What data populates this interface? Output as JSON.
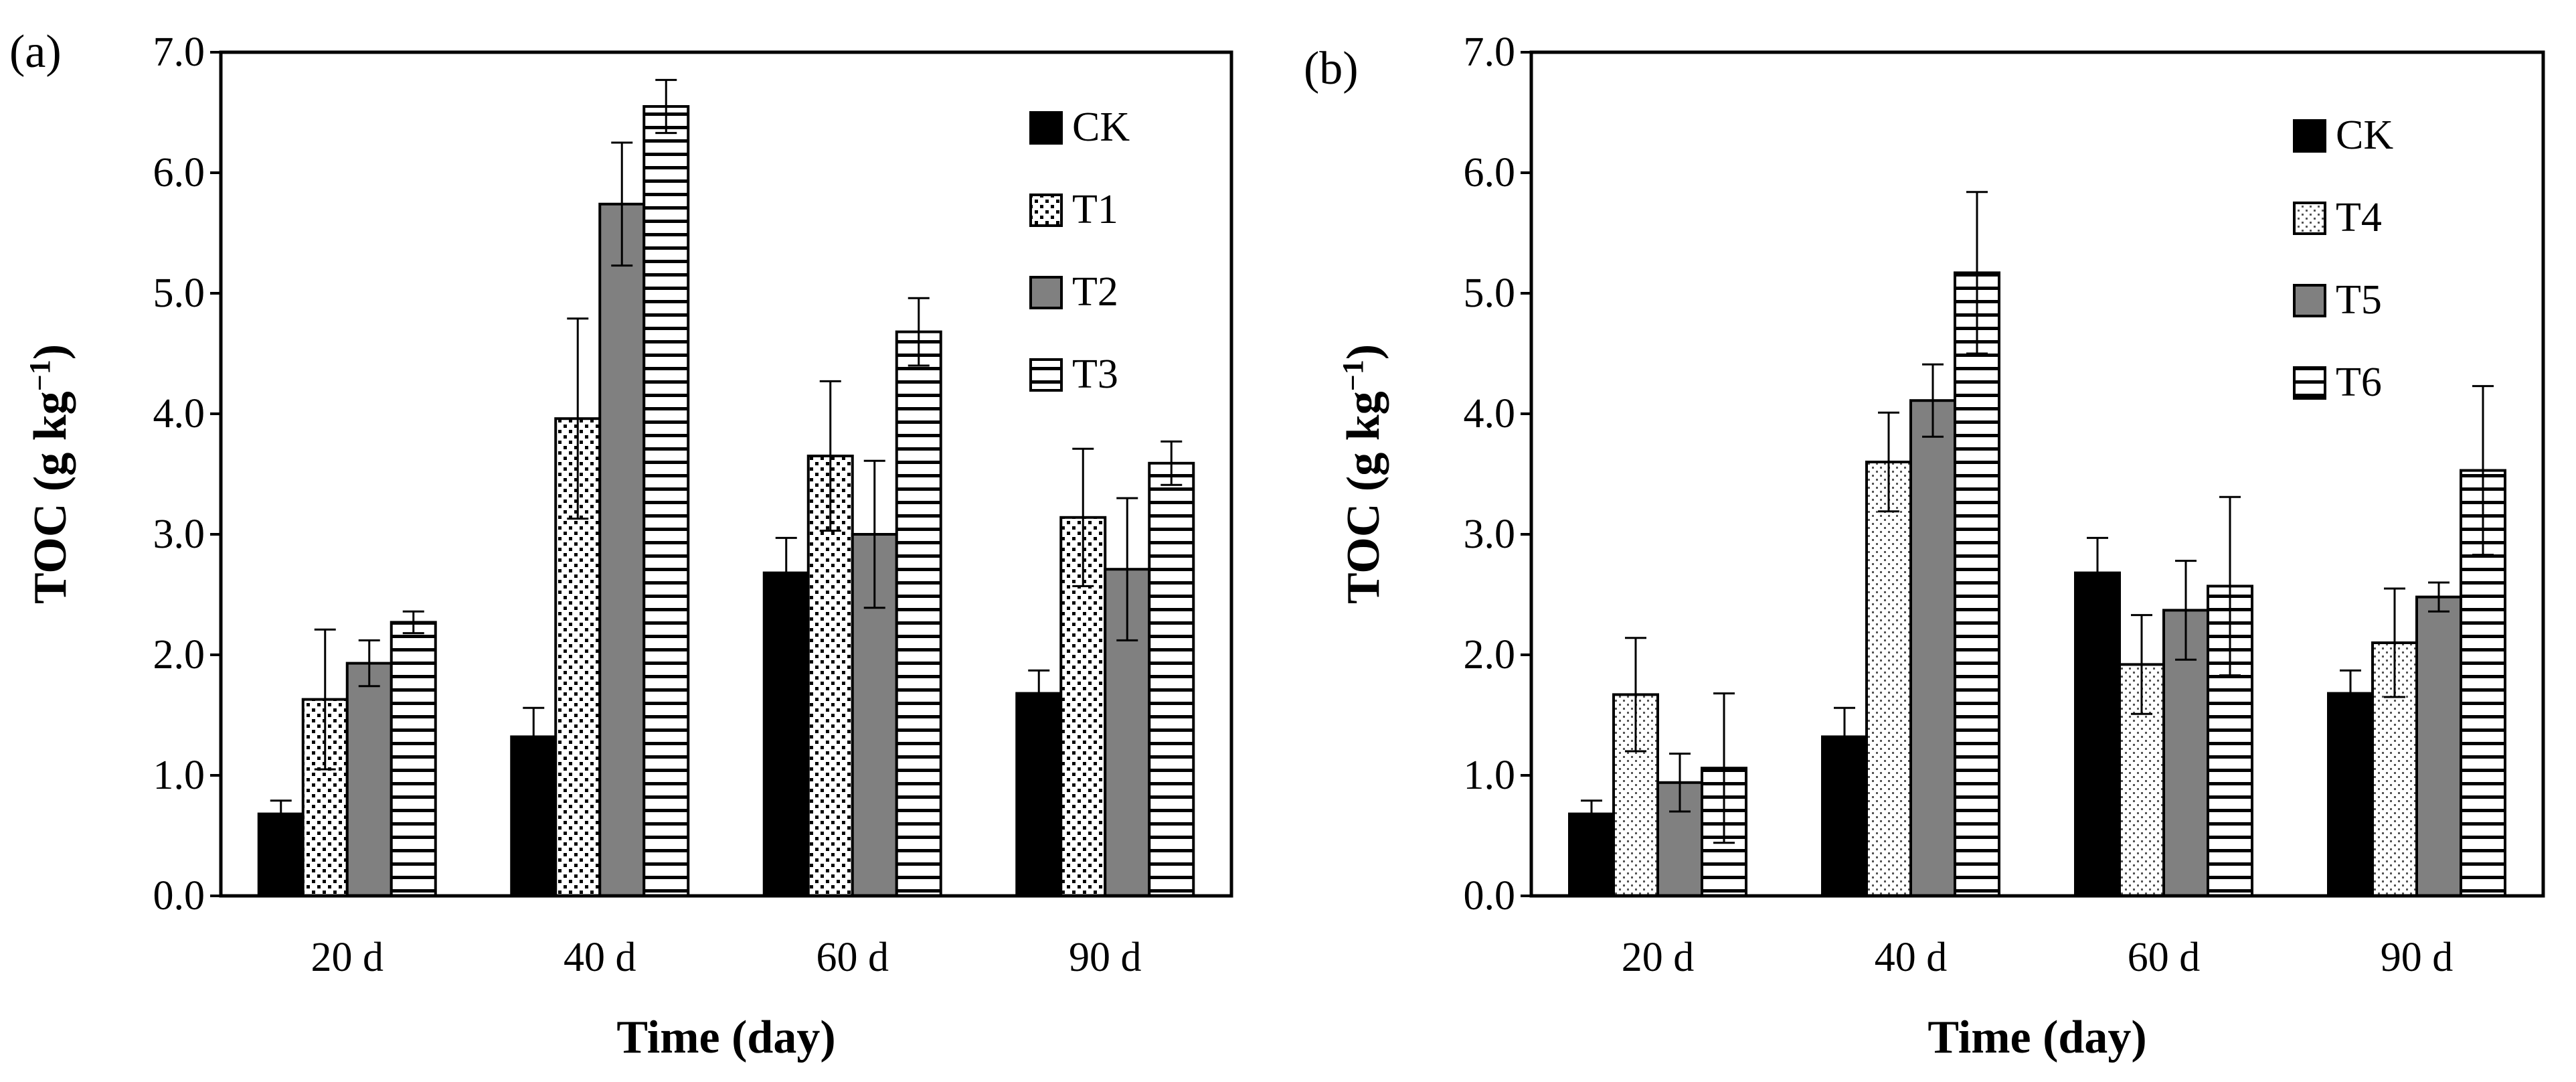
{
  "chart_data": [
    {
      "type": "bar",
      "panel_label": "(a)",
      "xlabel": "Time (day)",
      "ylabel_main": "TOC (g kg",
      "ylabel_sup": "−1",
      "ylabel_close": ")",
      "ylim": [
        0,
        7
      ],
      "yticks": [
        "0.0",
        "1.0",
        "2.0",
        "3.0",
        "4.0",
        "5.0",
        "6.0",
        "7.0"
      ],
      "categories": [
        "20 d",
        "40 d",
        "60 d",
        "90 d"
      ],
      "legend_position": "top-right",
      "series": [
        {
          "name": "CK",
          "fill": "solid-black",
          "values": [
            0.68,
            1.32,
            2.68,
            1.68
          ],
          "errors": [
            0.11,
            0.24,
            0.29,
            0.19
          ]
        },
        {
          "name": "T1",
          "fill": "dots",
          "values": [
            1.63,
            3.96,
            3.65,
            3.14
          ],
          "errors": [
            0.58,
            0.83,
            0.62,
            0.57
          ]
        },
        {
          "name": "T2",
          "fill": "solid-gray",
          "values": [
            1.93,
            5.74,
            3.0,
            2.71
          ],
          "errors": [
            0.19,
            0.51,
            0.61,
            0.59
          ]
        },
        {
          "name": "T3",
          "fill": "horizontal-lines",
          "values": [
            2.27,
            6.55,
            4.68,
            3.59
          ],
          "errors": [
            0.09,
            0.22,
            0.28,
            0.18
          ]
        }
      ]
    },
    {
      "type": "bar",
      "panel_label": "(b)",
      "xlabel": "Time (day)",
      "ylabel_main": "TOC (g kg",
      "ylabel_sup": "−1",
      "ylabel_close": ")",
      "ylim": [
        0,
        7
      ],
      "yticks": [
        "0.0",
        "1.0",
        "2.0",
        "3.0",
        "4.0",
        "5.0",
        "6.0",
        "7.0"
      ],
      "categories": [
        "20 d",
        "40 d",
        "60 d",
        "90 d"
      ],
      "legend_position": "top-right",
      "series": [
        {
          "name": "CK",
          "fill": "solid-black",
          "values": [
            0.68,
            1.32,
            2.68,
            1.68
          ],
          "errors": [
            0.11,
            0.24,
            0.29,
            0.19
          ]
        },
        {
          "name": "T4",
          "fill": "fine-dots",
          "values": [
            1.67,
            3.6,
            1.92,
            2.1
          ],
          "errors": [
            0.47,
            0.41,
            0.41,
            0.45
          ]
        },
        {
          "name": "T5",
          "fill": "solid-gray",
          "values": [
            0.94,
            4.11,
            2.37,
            2.48
          ],
          "errors": [
            0.24,
            0.3,
            0.41,
            0.12
          ]
        },
        {
          "name": "T6",
          "fill": "horizontal-lines",
          "values": [
            1.06,
            5.17,
            2.57,
            3.53
          ],
          "errors": [
            0.62,
            0.67,
            0.74,
            0.7
          ]
        }
      ]
    }
  ]
}
